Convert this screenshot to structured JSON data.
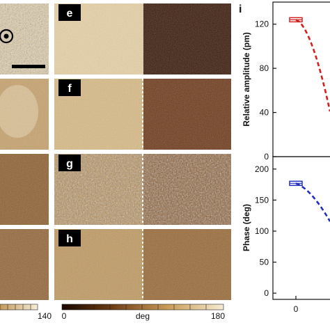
{
  "panels": {
    "e": {
      "label": "e"
    },
    "f": {
      "label": "f"
    },
    "g": {
      "label": "g"
    },
    "h": {
      "label": "h"
    },
    "i": {
      "label": "i"
    }
  },
  "colorbar_left": {
    "max_label": "140"
  },
  "colorbar_right": {
    "min_label": "0",
    "unit_label": "deg",
    "max_label": "180"
  },
  "colors": {
    "light_domain": "#d9bb86",
    "dark_domain": "#3a1a0a",
    "amplitude_line": "#d62020",
    "phase_line": "#1f2fbf",
    "axis": "#111111"
  },
  "chart_data": [
    {
      "type": "line",
      "ylabel": "Relative amplitude (pm)",
      "ylim": [
        0,
        140
      ],
      "yticks": [
        0,
        40,
        80,
        120
      ],
      "xticks": [
        0
      ],
      "x": [
        0
      ],
      "values": [
        124
      ],
      "series_color": "#d62020"
    },
    {
      "type": "line",
      "ylabel": "Phase (deg)",
      "ylim": [
        -10,
        220
      ],
      "yticks": [
        0,
        50,
        100,
        150,
        200
      ],
      "xticks": [
        0
      ],
      "x": [
        0
      ],
      "values": [
        177
      ],
      "series_color": "#1f2fbf"
    }
  ]
}
